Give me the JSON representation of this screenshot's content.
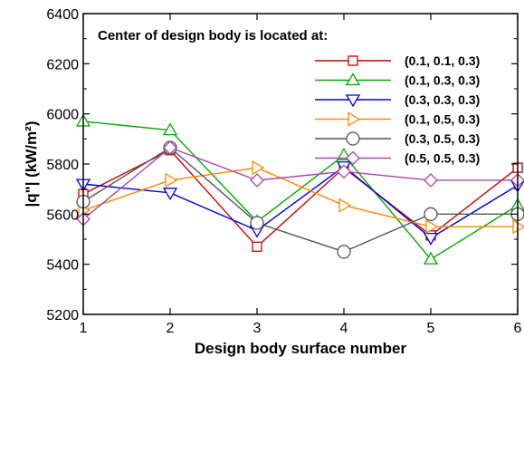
{
  "chart_data": {
    "type": "line",
    "xlabel": "Design body surface number",
    "ylabel": "|q\"| (kW/m²)",
    "xlim": [
      1,
      6
    ],
    "ylim": [
      5200,
      6400
    ],
    "x_ticks": [
      "1",
      "2",
      "3",
      "4",
      "5",
      "6"
    ],
    "y_ticks": [
      "5200",
      "5400",
      "5600",
      "5800",
      "6000",
      "6200",
      "6400"
    ],
    "grid": false,
    "legend_title": "Center of design body is located at:",
    "legend_position": "top-right",
    "x": [
      1,
      2,
      3,
      4,
      5,
      6
    ],
    "series": [
      {
        "name": "(0.1, 0.1, 0.3)",
        "color": "#cc0000",
        "marker": "square",
        "values": [
          5680,
          5855,
          5470,
          5785,
          5515,
          5785
        ]
      },
      {
        "name": "(0.1, 0.3, 0.3)",
        "color": "#00aa00",
        "marker": "triangle-up",
        "values": [
          5970,
          5935,
          5570,
          5835,
          5420,
          5635
        ]
      },
      {
        "name": "(0.3, 0.3, 0.3)",
        "color": "#0000dd",
        "marker": "triangle-down",
        "values": [
          5720,
          5685,
          5535,
          5790,
          5505,
          5715
        ]
      },
      {
        "name": "(0.1, 0.5, 0.3)",
        "color": "#ff8800",
        "marker": "triangle-right",
        "values": [
          5615,
          5735,
          5785,
          5635,
          5550,
          5550
        ]
      },
      {
        "name": "(0.3, 0.5, 0.3)",
        "color": "#555555",
        "marker": "circle",
        "values": [
          5650,
          5865,
          5565,
          5450,
          5600,
          5600
        ]
      },
      {
        "name": "(0.5, 0.5, 0.3)",
        "color": "#aa44aa",
        "marker": "diamond",
        "values": [
          5580,
          5865,
          5735,
          5770,
          5735,
          5735
        ]
      }
    ]
  }
}
